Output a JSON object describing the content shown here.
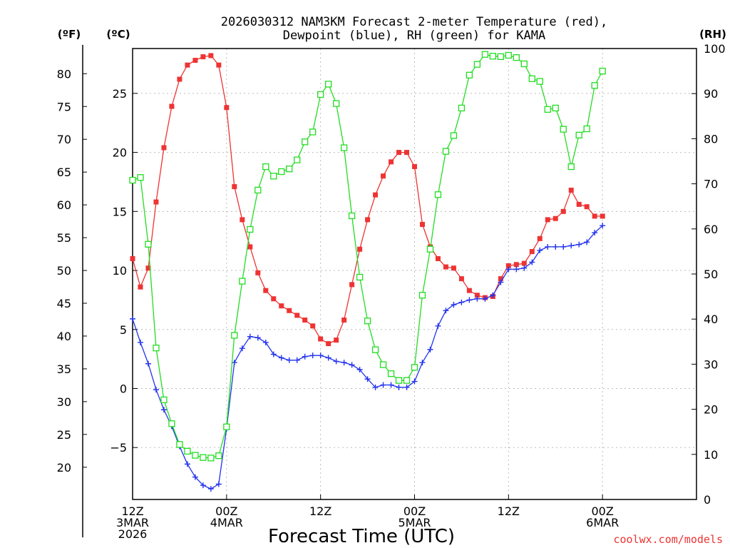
{
  "chart_data": {
    "type": "line",
    "title_line1": "2026030312 NAM3KM Forecast 2-meter Temperature (red),",
    "title_line2": "Dewpoint (blue), RH (green) for KAMA",
    "xlabel": "Forecast Time (UTC)",
    "watermark": "coolwx.com/models",
    "unit_labels": {
      "fahrenheit": "(ºF)",
      "celsius": "(ºC)",
      "rh": "(RH)"
    },
    "x_range_hours": [
      0,
      72
    ],
    "x_ticks": [
      {
        "hour": 0,
        "line1": "12Z",
        "line2": "3MAR",
        "line3": "2026"
      },
      {
        "hour": 12,
        "line1": "00Z",
        "line2": "4MAR",
        "line3": ""
      },
      {
        "hour": 24,
        "line1": "12Z",
        "line2": "",
        "line3": ""
      },
      {
        "hour": 36,
        "line1": "00Z",
        "line2": "5MAR",
        "line3": ""
      },
      {
        "hour": 48,
        "line1": "12Z",
        "line2": "",
        "line3": ""
      },
      {
        "hour": 60,
        "line1": "00Z",
        "line2": "6MAR",
        "line3": ""
      }
    ],
    "celsius_axis": {
      "range": [
        -9.4,
        28.8
      ],
      "ticks": [
        -5,
        0,
        5,
        10,
        15,
        20,
        25
      ]
    },
    "fahrenheit_axis": {
      "ticks": [
        20,
        25,
        30,
        35,
        40,
        45,
        50,
        55,
        60,
        65,
        70,
        75,
        80
      ]
    },
    "rh_axis": {
      "range": [
        0,
        100
      ],
      "ticks": [
        0,
        10,
        20,
        30,
        40,
        50,
        60,
        70,
        80,
        90,
        100
      ]
    },
    "series": [
      {
        "name": "2-meter Temperature",
        "unit": "C",
        "color": "#ee3333",
        "marker": "filled-square",
        "x": [
          0,
          1,
          2,
          3,
          4,
          5,
          6,
          7,
          8,
          9,
          10,
          11,
          12,
          13,
          14,
          15,
          16,
          17,
          18,
          19,
          20,
          21,
          22,
          23,
          24,
          25,
          26,
          27,
          28,
          29,
          30,
          31,
          32,
          33,
          34,
          35,
          36,
          37,
          38,
          39,
          40,
          41,
          42,
          43,
          44,
          45,
          46,
          47,
          48,
          49,
          50,
          51,
          52,
          53,
          54,
          55,
          56,
          57,
          58,
          59,
          60
        ],
        "values": [
          11.0,
          8.6,
          10.2,
          15.8,
          20.4,
          23.9,
          26.2,
          27.4,
          27.8,
          28.1,
          28.2,
          27.4,
          23.8,
          17.1,
          14.3,
          12.0,
          9.8,
          8.3,
          7.6,
          7.0,
          6.6,
          6.2,
          5.8,
          5.3,
          4.2,
          3.8,
          4.1,
          5.8,
          8.8,
          11.8,
          14.3,
          16.4,
          18.0,
          19.2,
          20.0,
          20.0,
          18.8,
          13.9,
          12.0,
          11.0,
          10.3,
          10.2,
          9.3,
          8.3,
          7.9,
          7.7,
          7.8,
          9.3,
          10.4,
          10.5,
          10.6,
          11.6,
          12.7,
          14.3,
          14.4,
          15.0,
          16.8,
          15.6,
          15.4,
          14.6,
          14.6
        ]
      },
      {
        "name": "Dewpoint",
        "unit": "C",
        "color": "#2233ee",
        "marker": "plus",
        "x": [
          0,
          1,
          2,
          3,
          4,
          5,
          6,
          7,
          8,
          9,
          10,
          11,
          12,
          13,
          14,
          15,
          16,
          17,
          18,
          19,
          20,
          21,
          22,
          23,
          24,
          25,
          26,
          27,
          28,
          29,
          30,
          31,
          32,
          33,
          34,
          35,
          36,
          37,
          38,
          39,
          40,
          41,
          42,
          43,
          44,
          45,
          46,
          47,
          48,
          49,
          50,
          51,
          52,
          53,
          54,
          55,
          56,
          57,
          58,
          59,
          60
        ],
        "values": [
          5.9,
          3.9,
          2.1,
          -0.1,
          -1.8,
          -3.2,
          -4.9,
          -6.4,
          -7.5,
          -8.2,
          -8.5,
          -8.1,
          -3.4,
          2.2,
          3.4,
          4.4,
          4.3,
          3.9,
          2.9,
          2.6,
          2.4,
          2.4,
          2.7,
          2.8,
          2.8,
          2.6,
          2.3,
          2.2,
          2.0,
          1.6,
          0.8,
          0.1,
          0.3,
          0.3,
          0.1,
          0.1,
          0.6,
          2.2,
          3.3,
          5.3,
          6.6,
          7.1,
          7.3,
          7.5,
          7.6,
          7.6,
          7.9,
          9.0,
          10.1,
          10.1,
          10.2,
          10.7,
          11.7,
          12.0,
          12.0,
          12.0,
          12.1,
          12.2,
          12.4,
          13.2,
          13.8
        ]
      },
      {
        "name": "RH",
        "unit": "%",
        "color": "#22dd22",
        "marker": "open-square",
        "x": [
          0,
          1,
          2,
          3,
          4,
          5,
          6,
          7,
          8,
          9,
          10,
          11,
          12,
          13,
          14,
          15,
          16,
          17,
          18,
          19,
          20,
          21,
          22,
          23,
          24,
          25,
          26,
          27,
          28,
          29,
          30,
          31,
          32,
          33,
          34,
          35,
          36,
          37,
          38,
          39,
          40,
          41,
          42,
          43,
          44,
          45,
          46,
          47,
          48,
          49,
          50,
          51,
          52,
          53,
          54,
          55,
          56,
          57,
          58,
          59,
          60
        ],
        "values": [
          70.8,
          71.4,
          56.6,
          33.6,
          22.1,
          16.8,
          12.2,
          10.7,
          9.8,
          9.3,
          9.2,
          9.7,
          16.1,
          36.4,
          48.4,
          59.9,
          68.6,
          73.8,
          71.7,
          72.7,
          73.3,
          75.3,
          79.3,
          81.5,
          89.8,
          92.1,
          87.8,
          78.0,
          62.9,
          49.3,
          39.6,
          33.2,
          29.9,
          27.9,
          26.4,
          26.4,
          29.3,
          45.3,
          55.5,
          67.6,
          77.2,
          80.7,
          86.8,
          94.1,
          96.5,
          98.7,
          98.3,
          98.2,
          98.5,
          98.0,
          96.6,
          93.3,
          92.7,
          86.5,
          86.8,
          82.1,
          73.8,
          80.8,
          82.2,
          91.8,
          95.0
        ]
      }
    ]
  }
}
